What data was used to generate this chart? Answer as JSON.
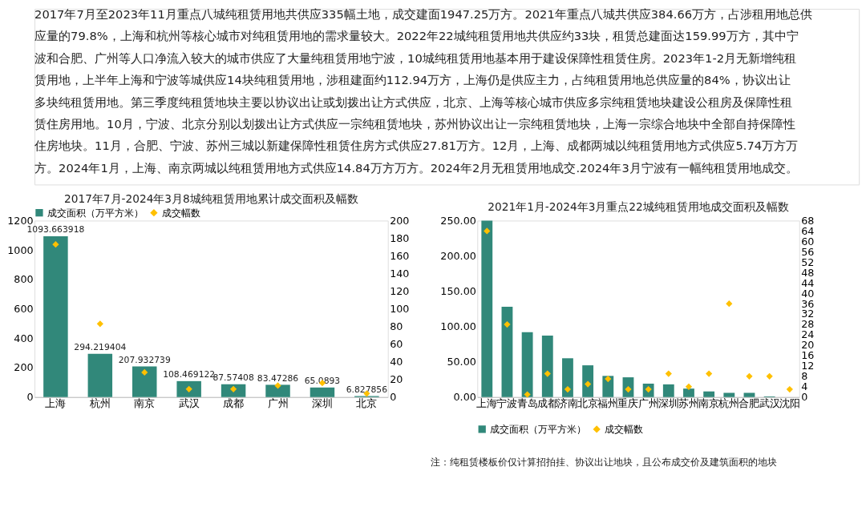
{
  "chart_data": [
    {
      "type": "other",
      "annotations": [
        "2017年7月至2023年11月重点八城纯租赁用地共供应335幅土地，成交建面1947.25万方。2021年重点八城共供应384.66万方，占涉租用地总供",
        "应量的79.8%，上海和杭州等核心城市对纯租赁用地的需求量较大。2022年22城纯租赁用地共供应约33块，租赁总建面达159.99万方，其中宁",
        "波和合肥、广州等人口净流入较大的城市供应了大量纯租赁用地宁波，10城纯租赁用地基本用于建设保障性租赁住房。2023年1-2月无新增纯租",
        "赁用地，上半年上海和宁波等城供应14块纯租赁用地，涉租建面约112.94万方，上海仍是供应主力，占纯租赁用地总供应量的84%，协议出让",
        "多块纯租赁用地。第三季度纯租赁地块主要以协议出让或划拨出让方式供应，北京、上海等核心城市供应多宗纯租赁地块建设公租房及保障性租",
        "赁住房用地。10月，宁波、北京分别以划拨出让方式供应一宗纯租赁地块，苏州协议出让一宗纯租赁地块，上海一宗综合地块中全部自持保障性",
        "住房地块。11月，合肥、宁波、苏州三城以新建保障性租赁住房方式供应27.81万方。12月，上海、成都两城以纯租赁用地方式供应5.74万方万",
        "方。2024年1月，上海、南京两城以纯租赁用地方式供应14.84万方万方。2024年2月无租赁用地成交.2024年3月宁波有一幅纯租赁用地成交。"
      ]
    },
    {
      "type": "bar",
      "title": "2017年7月-2024年3月8城纯租赁用地累计成交面积及幅数",
      "categories": [
        "上海",
        "杭州",
        "南京",
        "武汉",
        "成都",
        "广州",
        "深圳",
        "北京"
      ],
      "series": [
        {
          "name": "成交面积（万平方米）",
          "type": "bar",
          "color": "#31887a",
          "values": [
            1093.663918,
            294.219404,
            207.932739,
            108.469122,
            87.57408,
            83.47286,
            65.0893,
            6.827856
          ],
          "value_labels": [
            "1093.663918",
            "294.219404",
            "207.932739",
            "108.469122",
            "87.57408",
            "83.47286",
            "65.0893",
            "6.827856"
          ]
        },
        {
          "name": "成交幅数",
          "type": "scatter",
          "axis": "y2",
          "marker": "diamond",
          "color": "#ffc000",
          "values": [
            173,
            83,
            28,
            9,
            9,
            13,
            16,
            4
          ]
        }
      ],
      "ylim": [
        0,
        1200
      ],
      "yticks": [
        0,
        200,
        400,
        600,
        800,
        1000,
        1200
      ],
      "y2lim": [
        0,
        200
      ],
      "y2ticks": [
        0,
        20,
        40,
        60,
        80,
        100,
        120,
        140,
        160,
        180,
        200
      ],
      "legend": "top",
      "grid": false
    },
    {
      "type": "bar",
      "title": "2021年1月-2024年3月重点22城纯租赁用地成交面积及幅数",
      "categories": [
        "上海",
        "宁波",
        "青岛",
        "成都",
        "济南",
        "北京",
        "福州",
        "重庆",
        "广州",
        "深圳",
        "苏州",
        "南京",
        "杭州",
        "合肥",
        "武汉",
        "沈阳"
      ],
      "series": [
        {
          "name": "成交面积（万平方米）",
          "type": "bar",
          "color": "#31887a",
          "values": [
            250,
            128,
            92,
            87,
            55,
            45,
            30,
            28,
            19,
            18,
            12,
            8,
            6,
            6,
            1,
            0
          ]
        },
        {
          "name": "成交幅数",
          "type": "scatter",
          "axis": "y2",
          "marker": "diamond",
          "color": "#ffc000",
          "values": [
            64,
            28,
            1,
            9,
            3,
            5,
            7,
            3,
            3,
            9,
            4,
            9,
            36,
            8,
            8,
            3
          ]
        }
      ],
      "ylim": [
        0,
        250
      ],
      "yticks": [
        {
          "value": 0,
          "label": "0.00"
        },
        {
          "value": 50,
          "label": "50.00"
        },
        {
          "value": 100,
          "label": "100.00"
        },
        {
          "value": 150,
          "label": "150.00"
        },
        {
          "value": 200,
          "label": "200.00"
        },
        {
          "value": 250,
          "label": "250.00"
        }
      ],
      "y2lim": [
        0,
        68
      ],
      "y2ticks": [
        0,
        4,
        8,
        12,
        16,
        20,
        24,
        28,
        32,
        36,
        40,
        44,
        48,
        52,
        56,
        60,
        64,
        68
      ],
      "legend": "bottom",
      "grid": false,
      "annotations": [
        "注：纯租赁楼板价仅计算招拍挂、协议出让地块，且公布成交价及建筑面积的地块"
      ]
    }
  ]
}
